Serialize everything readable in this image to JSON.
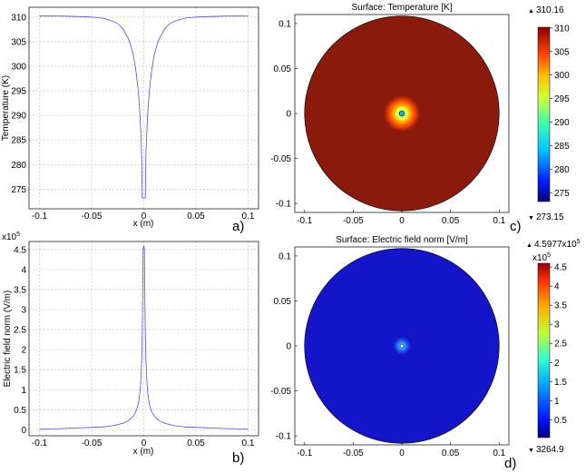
{
  "chart_data": [
    {
      "type": "line",
      "panel_label": "a)",
      "title": "",
      "xlabel": "x (m)",
      "ylabel": "Temperature (K)",
      "xlim": [
        -0.11,
        0.11
      ],
      "ylim": [
        271,
        312
      ],
      "grid": true,
      "xticks": [
        -0.1,
        -0.05,
        0,
        0.05,
        0.1
      ],
      "xtick_labels": [
        "-0.1",
        "-0.05",
        "0",
        "0.05",
        "0.1"
      ],
      "yticks": [
        275,
        280,
        285,
        290,
        295,
        300,
        305,
        310
      ],
      "ytick_labels": [
        "275",
        "280",
        "285",
        "290",
        "295",
        "300",
        "305",
        "310"
      ],
      "series": [
        {
          "color": "#4d4dff",
          "x": [
            -0.1,
            -0.08,
            -0.06,
            -0.05,
            -0.04,
            -0.03,
            -0.025,
            -0.02,
            -0.015,
            -0.012,
            -0.01,
            -0.008,
            -0.006,
            -0.005,
            -0.004,
            -0.003,
            -0.0025,
            -0.002,
            -0.0015,
            0,
            0.0015,
            0.002,
            0.0025,
            0.003,
            0.004,
            0.005,
            0.006,
            0.008,
            0.01,
            0.012,
            0.015,
            0.02,
            0.025,
            0.03,
            0.04,
            0.05,
            0.06,
            0.08,
            0.1
          ],
          "y": [
            310.2,
            310.2,
            310.1,
            310.0,
            309.8,
            309.2,
            308.7,
            307.6,
            305.7,
            303.9,
            302.2,
            299.8,
            296.4,
            294.1,
            291.2,
            287.3,
            284.7,
            281.5,
            273.2,
            273.2,
            273.2,
            281.5,
            284.7,
            287.3,
            291.2,
            294.1,
            296.4,
            299.8,
            302.2,
            303.9,
            305.7,
            307.6,
            308.7,
            309.2,
            309.8,
            310.0,
            310.1,
            310.2,
            310.2
          ]
        }
      ]
    },
    {
      "type": "line",
      "panel_label": "b)",
      "title": "",
      "xlabel": "x (m)",
      "ylabel": "Electric field norm (V/m)",
      "y_multiplier": "x10",
      "y_multiplier_exp": "5",
      "xlim": [
        -0.11,
        0.11
      ],
      "ylim": [
        -0.15,
        4.7
      ],
      "grid": true,
      "xticks": [
        -0.1,
        -0.05,
        0,
        0.05,
        0.1
      ],
      "xtick_labels": [
        "-0.1",
        "-0.05",
        "0",
        "0.05",
        "0.1"
      ],
      "yticks": [
        0,
        0.5,
        1,
        1.5,
        2,
        2.5,
        3,
        3.5,
        4,
        4.5
      ],
      "ytick_labels": [
        "0",
        "0.5",
        "1",
        "1.5",
        "2",
        "2.5",
        "3",
        "3.5",
        "4",
        "4.5"
      ],
      "series": [
        {
          "color": "#4d4dff",
          "x": [
            -0.1,
            -0.08,
            -0.06,
            -0.04,
            -0.03,
            -0.02,
            -0.015,
            -0.01,
            -0.008,
            -0.006,
            -0.005,
            -0.004,
            -0.003,
            -0.002,
            -0.0015,
            -0.001,
            -0.0006,
            0,
            0.0006,
            0.001,
            0.0015,
            0.002,
            0.003,
            0.004,
            0.005,
            0.006,
            0.008,
            0.01,
            0.015,
            0.02,
            0.03,
            0.04,
            0.06,
            0.08,
            0.1
          ],
          "y": [
            0.02,
            0.03,
            0.05,
            0.07,
            0.1,
            0.16,
            0.22,
            0.34,
            0.43,
            0.57,
            0.7,
            0.88,
            1.17,
            1.76,
            2.35,
            3.52,
            4.5,
            4.6,
            4.5,
            3.52,
            2.35,
            1.76,
            1.17,
            0.88,
            0.7,
            0.57,
            0.43,
            0.34,
            0.22,
            0.16,
            0.1,
            0.07,
            0.05,
            0.03,
            0.02
          ]
        }
      ]
    },
    {
      "type": "heatmap",
      "panel_label": "c)",
      "title": "Surface: Temperature [K]",
      "xlim": [
        -0.11,
        0.11
      ],
      "ylim": [
        -0.11,
        0.11
      ],
      "xticks": [
        -0.1,
        -0.05,
        0,
        0.05,
        0.1
      ],
      "xtick_labels": [
        "-0.1",
        "-0.05",
        "0",
        "0.05",
        "0.1"
      ],
      "yticks": [
        -0.1,
        -0.05,
        0,
        0.05,
        0.1
      ],
      "ytick_labels": [
        "-0.1",
        "-0.05",
        "0",
        "0.05",
        "0.1"
      ],
      "shape": "disk",
      "radius": 0.1,
      "colorbar": {
        "min": 273.15,
        "max": 310.16,
        "max_label": "310.16",
        "min_label": "273.15",
        "ticks": [
          275,
          280,
          285,
          290,
          295,
          300,
          305,
          310
        ],
        "tick_labels": [
          "275",
          "280",
          "285",
          "290",
          "295",
          "300",
          "305",
          "310"
        ]
      },
      "field_color": "#8a1a0c",
      "hotspot_colors": [
        "#8a1a0c",
        "#c42a0c",
        "#ff5a00",
        "#ffb000",
        "#ffff40",
        "#40ffc0",
        "#0080ff"
      ]
    },
    {
      "type": "heatmap",
      "panel_label": "d)",
      "title": "Surface: Electric field norm [V/m]",
      "xlim": [
        -0.11,
        0.11
      ],
      "ylim": [
        -0.11,
        0.11
      ],
      "xticks": [
        -0.1,
        -0.05,
        0,
        0.05,
        0.1
      ],
      "xtick_labels": [
        "-0.1",
        "-0.05",
        "0",
        "0.05",
        "0.1"
      ],
      "yticks": [
        -0.1,
        -0.05,
        0,
        0.05,
        0.1
      ],
      "ytick_labels": [
        "-0.1",
        "-0.05",
        "0",
        "0.05",
        "0.1"
      ],
      "shape": "disk",
      "radius": 0.1,
      "colorbar": {
        "min": 3264.9,
        "max": 459770,
        "max_label": "4.5977x10",
        "max_label_exp": "5",
        "min_label": "3264.9",
        "multiplier": "x10",
        "multiplier_exp": "5",
        "ticks": [
          0.5,
          1,
          1.5,
          2,
          2.5,
          3,
          3.5,
          4,
          4.5
        ],
        "tick_labels": [
          "0.5",
          "1",
          "1.5",
          "2",
          "2.5",
          "3",
          "3.5",
          "4",
          "4.5"
        ]
      },
      "field_color": "#1414c8",
      "hotspot_colors": [
        "#1414c8",
        "#1a3ae0",
        "#2a7aff",
        "#40d0ff",
        "#ffffff"
      ]
    }
  ]
}
